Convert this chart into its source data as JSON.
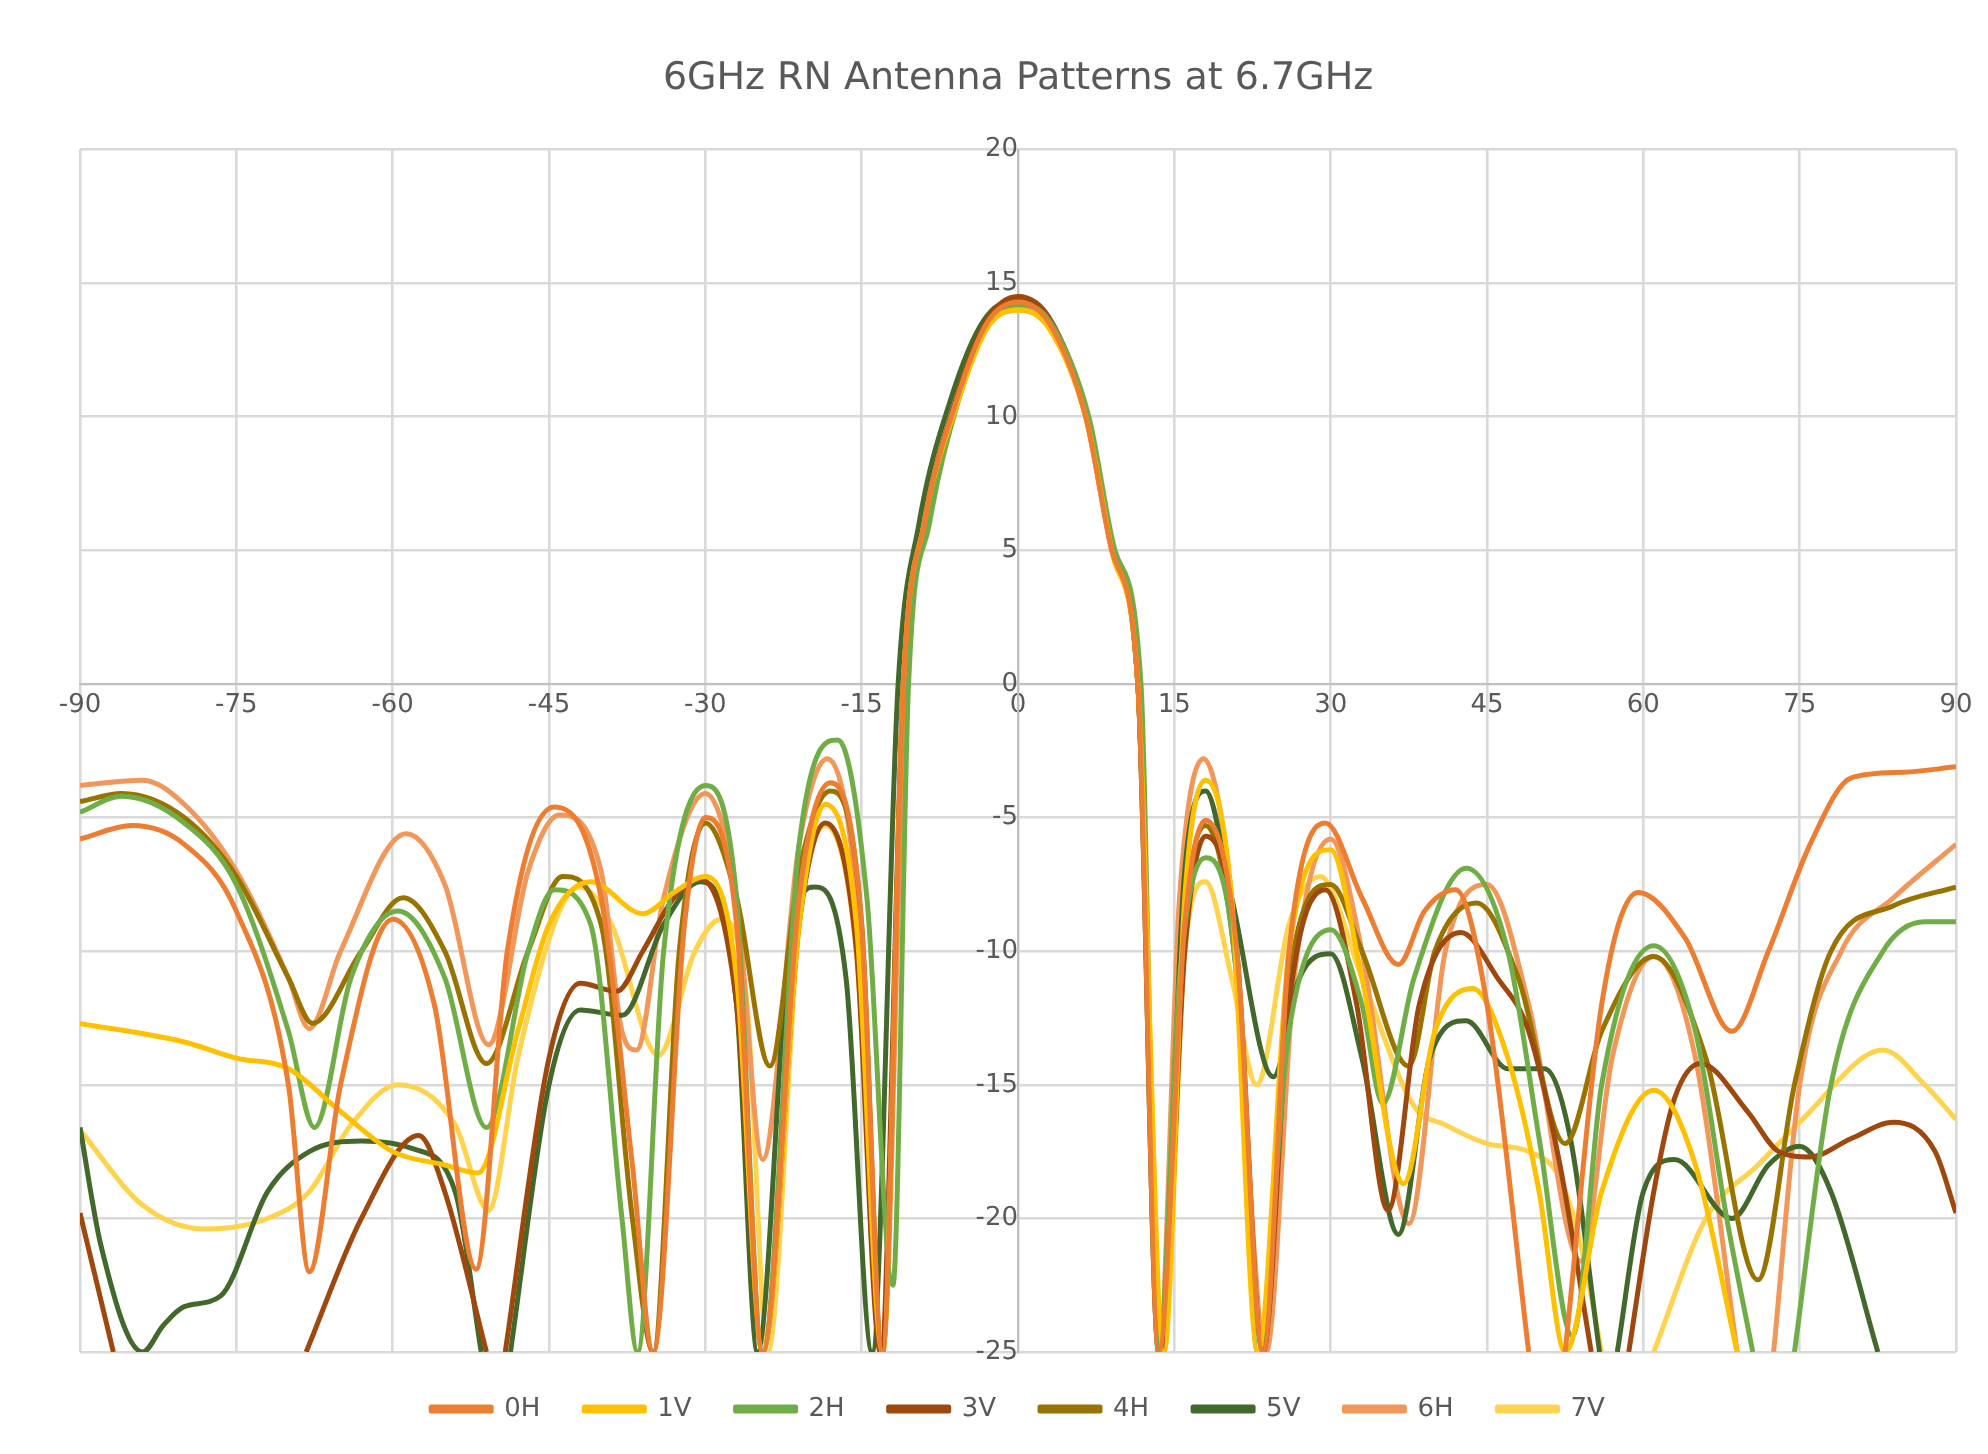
{
  "chart_data": {
    "type": "line",
    "title": "6GHz RN Antenna Patterns at 6.7GHz",
    "xlim": [
      -90,
      90
    ],
    "xticks": [
      -90,
      -75,
      -60,
      -45,
      -30,
      -15,
      0,
      15,
      30,
      45,
      60,
      75,
      90
    ],
    "ylim": [
      -25,
      20
    ],
    "yticks": [
      -25,
      -20,
      -15,
      -10,
      -5,
      0,
      5,
      10,
      15,
      20
    ],
    "grid": true,
    "legend": "bottom",
    "marker": "none",
    "line_style": "solid",
    "series": [
      {
        "name": "0H",
        "color": "#ed7d31",
        "x": [
          -90,
          -85,
          -80,
          -75,
          -70,
          -68,
          -65,
          -60,
          -56,
          -52,
          -49,
          -44.5,
          -40,
          -37,
          -35,
          -32,
          -30,
          -27,
          -24.5,
          -21,
          -18,
          -15,
          -13,
          -11,
          -9,
          -6,
          -3,
          0,
          3,
          6.5,
          9,
          11.5,
          13.5,
          16,
          18,
          21,
          23.5,
          26,
          29.5,
          33,
          36.5,
          39,
          42,
          45,
          49,
          51,
          52.5,
          56,
          59.5,
          64,
          68.5,
          72,
          76,
          80,
          85,
          90
        ],
        "values": [
          -5.8,
          -5.3,
          -6,
          -8.5,
          -15,
          -22,
          -15,
          -8.8,
          -12,
          -21.9,
          -10,
          -4.6,
          -8,
          -18,
          -25,
          -9,
          -5,
          -9,
          -25,
          -8,
          -3.7,
          -9,
          -25,
          0,
          6,
          10.5,
          13.5,
          14.3,
          13.5,
          10,
          5,
          0,
          -25,
          -9,
          -5.1,
          -10,
          -25,
          -10,
          -5.2,
          -8,
          -10.5,
          -8.5,
          -7.7,
          -12,
          -25,
          null,
          -25,
          -12,
          -7.8,
          -9.5,
          -13,
          -10,
          -6,
          -3.5,
          -3.3,
          -3.1
        ]
      },
      {
        "name": "1V",
        "color": "#ffc000",
        "x": [
          -90,
          -80,
          -75,
          -70,
          -65,
          -60,
          -55,
          -51.8,
          -48,
          -45,
          -41,
          -36,
          -33,
          -30,
          -27,
          -24.5,
          -21,
          -18.5,
          -15.5,
          -13,
          -11,
          -9,
          -6,
          -3,
          0,
          3,
          6.5,
          9,
          11.5,
          14,
          16,
          18,
          20.5,
          23,
          26,
          30,
          33,
          37,
          40,
          43.6,
          47,
          50,
          52.5,
          56,
          61,
          65,
          69
        ],
        "values": [
          -12.7,
          -13.4,
          -14,
          -14.4,
          -16,
          -17.5,
          -18,
          -18.3,
          -13,
          -9,
          -7.4,
          -8.6,
          -7.8,
          -7.2,
          -11,
          -25,
          -9,
          -4.5,
          -9,
          -25,
          0,
          6,
          10.3,
          13.3,
          14,
          13.3,
          10,
          5,
          0,
          -25,
          -8,
          -3.6,
          -8,
          -25,
          -10,
          -6.2,
          -11,
          -18.7,
          -13,
          -11.4,
          -14,
          -19,
          -25,
          -19,
          -15.2,
          -18,
          -25
        ]
      },
      {
        "name": "2H",
        "color": "#70ad47",
        "x": [
          -90,
          -86,
          -80,
          -75,
          -70,
          -67.5,
          -64,
          -59.5,
          -55,
          -51,
          -47,
          -44.5,
          -41,
          -38,
          -36.5,
          -34,
          -30,
          -27,
          -24.5,
          -21,
          -17.3,
          -14.5,
          -12,
          -10.5,
          -8.5,
          -5.8,
          -3,
          0,
          3,
          6.8,
          9.3,
          11.8,
          13.5,
          15.5,
          18,
          21,
          23,
          26,
          30,
          33,
          35,
          38,
          43,
          47,
          50,
          53.2,
          56,
          61,
          65,
          68,
          70.5,
          72.5,
          74.5,
          78,
          83,
          87,
          90
        ],
        "values": [
          -4.8,
          -4.2,
          -5.2,
          -7.5,
          -13,
          -16.6,
          -11,
          -8.5,
          -11,
          -16.6,
          -10,
          -7.7,
          -9,
          -20,
          -25,
          -10,
          -3.8,
          -8,
          -25,
          -6,
          -2.1,
          -8,
          -22.5,
          0,
          6,
          10.5,
          13.4,
          14.2,
          13.6,
          10,
          5,
          0,
          -25,
          -11,
          -6.5,
          -11,
          -25,
          -13,
          -9.2,
          -12,
          -15.7,
          -11,
          -6.9,
          -10,
          -17,
          -24.4,
          -15,
          -9.8,
          -13,
          -20,
          -25,
          null,
          -25,
          -15,
          -10,
          -8.9,
          -8.9
        ]
      },
      {
        "name": "3V",
        "color": "#9e480e",
        "x": [
          -90,
          -86.8,
          -78,
          -68.3,
          -63,
          -57.5,
          -55,
          -51,
          -50,
          -49.2,
          -45,
          -42,
          -38.5,
          -36,
          -33,
          -30.5,
          -27,
          -24.5,
          -21,
          -18.5,
          -15.5,
          -13.2,
          -11,
          -9,
          -6,
          -3,
          0,
          3,
          6.5,
          9,
          11.5,
          13.8,
          16,
          18,
          21,
          23.5,
          26,
          29.5,
          32.5,
          35.5,
          38.5,
          42.5,
          46,
          49,
          52,
          55,
          56,
          58.6,
          61,
          63,
          65.5,
          70,
          73,
          76,
          80,
          84,
          88,
          90
        ],
        "values": [
          -19.8,
          -25,
          null,
          -25,
          -20,
          -16.9,
          -19,
          -25,
          null,
          -25,
          -14,
          -11.2,
          -11.5,
          -10,
          -8,
          -7.3,
          -12,
          -25,
          -9,
          -5.2,
          -10,
          -25,
          0,
          6,
          10.6,
          13.6,
          14.5,
          13.7,
          10.2,
          5.2,
          0,
          -25,
          -10,
          -5.7,
          -10,
          -25,
          -12,
          -7.7,
          -12,
          -19.7,
          -12,
          -9.3,
          -11,
          -13,
          -18,
          -25,
          null,
          -25,
          -19,
          -15.5,
          -14.2,
          -16,
          -17.5,
          -17.7,
          -17,
          -16.4,
          -17.5,
          -19.8
        ]
      },
      {
        "name": "4H",
        "color": "#997300",
        "x": [
          -90,
          -86,
          -80,
          -75,
          -70,
          -67.7,
          -63,
          -59,
          -55,
          -51,
          -47,
          -43.7,
          -40,
          -37,
          -35,
          -32.5,
          -30,
          -27,
          -23.8,
          -21,
          -18,
          -15,
          -13,
          -11,
          -9,
          -6,
          -3,
          0,
          3,
          6.5,
          9,
          11.5,
          13.8,
          16,
          18,
          21,
          23.5,
          26,
          30,
          33,
          37.5,
          40,
          44,
          48,
          52.5,
          56,
          61,
          66,
          71,
          74.5,
          78,
          84,
          90
        ],
        "values": [
          -4.4,
          -4.1,
          -5,
          -7.2,
          -11,
          -12.7,
          -10,
          -8,
          -10,
          -14.2,
          -10,
          -7.2,
          -9,
          -20,
          -25,
          -10,
          -5.2,
          -8,
          -14.3,
          -7,
          -4,
          -9,
          -25,
          0,
          6,
          10.5,
          13.5,
          14.3,
          13.6,
          10.1,
          5.1,
          0,
          -25,
          -9,
          -5.3,
          -11,
          -25,
          -11,
          -7.5,
          -10,
          -14.3,
          -10,
          -8.2,
          -11,
          -17.2,
          -13,
          -10.2,
          -14,
          -22.3,
          -15,
          -10,
          -8.3,
          -7.6
        ]
      },
      {
        "name": "5V",
        "color": "#43682b",
        "x": [
          -90,
          -88,
          -84,
          -82,
          -80,
          -76.5,
          -72,
          -68,
          -63,
          -58,
          -54,
          -51.5,
          -50,
          -48.7,
          -45,
          -42,
          -38,
          -34,
          -30.5,
          -27,
          -25,
          -22,
          -19.5,
          -16.5,
          -14,
          -11.5,
          -9.5,
          -6.5,
          -3.3,
          0,
          3,
          6.5,
          9,
          11.5,
          13.5,
          16,
          18,
          20.5,
          24.5,
          27,
          30,
          33,
          36.5,
          39.5,
          43,
          47,
          50.5,
          53,
          55.8,
          56.5,
          57.5,
          60,
          63,
          68.5,
          72,
          75,
          78,
          82.5
        ],
        "values": [
          -16.6,
          -21,
          -25,
          -24,
          -23.3,
          -22.9,
          -19,
          -17.5,
          -17.1,
          -17.4,
          -19,
          -25,
          null,
          -25,
          -15,
          -12.2,
          -12.4,
          -9,
          -7.4,
          -12,
          -25,
          -10,
          -7.6,
          -11,
          -25,
          0,
          6,
          10.6,
          13.6,
          14.4,
          13.6,
          10.2,
          5.2,
          0,
          -25,
          -7,
          -4,
          -8,
          -14.7,
          -11,
          -10.1,
          -14,
          -20.6,
          -14,
          -12.6,
          -14.4,
          -14.4,
          -17,
          -25,
          null,
          -25,
          -19,
          -17.8,
          -20,
          -18,
          -17.3,
          -19,
          -25
        ]
      },
      {
        "name": "6H",
        "color": "#f1975a",
        "x": [
          -90,
          -84,
          -80,
          -75,
          -70,
          -68,
          -65,
          -58.7,
          -55,
          -50.8,
          -47,
          -44,
          -40,
          -38,
          -36.6,
          -34,
          -30,
          -27,
          -24.5,
          -21,
          -18.3,
          -15.5,
          -13,
          -10.8,
          -8.8,
          -6,
          -3,
          0,
          3,
          6.5,
          9,
          11.5,
          13.5,
          15.5,
          17.8,
          20.5,
          23.8,
          26.5,
          30,
          33,
          37.5,
          41,
          45,
          49,
          54,
          57,
          61,
          65,
          69,
          70.5,
          72.5,
          75,
          79,
          84,
          90
        ],
        "values": [
          -3.8,
          -3.6,
          -4.5,
          -7,
          -11,
          -12.9,
          -10,
          -5.6,
          -7.5,
          -13.5,
          -7,
          -4.9,
          -7,
          -13,
          -13.7,
          -8,
          -4.1,
          -8,
          -17.8,
          -6,
          -2.8,
          -8,
          -25,
          0,
          6,
          10.3,
          13.4,
          14.1,
          13.4,
          10,
          5,
          0,
          -25,
          -8,
          -2.8,
          -8,
          -25,
          -11,
          -5.8,
          -10,
          -20.2,
          -10,
          -7.5,
          -12,
          -21.6,
          -14,
          -10.2,
          -14,
          -25,
          null,
          -25,
          -15,
          -10,
          -8,
          -6
        ]
      },
      {
        "name": "7V",
        "color": "#ffd34d",
        "x": [
          -90,
          -84,
          -78,
          -72,
          -68,
          -64,
          -59.5,
          -54,
          -50.8,
          -48,
          -44,
          -42,
          -39,
          -34.5,
          -31,
          -28.5,
          -26,
          -24,
          -21,
          -18.5,
          -15.5,
          -13,
          -11,
          -9,
          -6,
          -3,
          0,
          3,
          6.5,
          9,
          11.5,
          14,
          16,
          18,
          20.5,
          22.9,
          26,
          29,
          33,
          38,
          41,
          45,
          49,
          52,
          54,
          56,
          58,
          61,
          66,
          71,
          76,
          81,
          83,
          87,
          90
        ],
        "values": [
          -16.7,
          -19.5,
          -20.4,
          -20,
          -19,
          -16.5,
          -15,
          -16.5,
          -19.7,
          -14,
          -8.5,
          -7.6,
          -9,
          -13.9,
          -10,
          -8.8,
          -12,
          -25,
          -9,
          -5.3,
          -10,
          -25,
          0,
          6,
          10.3,
          13.3,
          14,
          13.3,
          10,
          5,
          0,
          -25,
          -10,
          -7.4,
          -11,
          -15,
          -9,
          -7.2,
          -11,
          -15.8,
          -16.5,
          -17.2,
          -17.5,
          -18.5,
          -21,
          -25,
          null,
          -25,
          -20,
          -18,
          -16,
          -14,
          -13.7,
          -15,
          -16.3
        ]
      }
    ]
  }
}
